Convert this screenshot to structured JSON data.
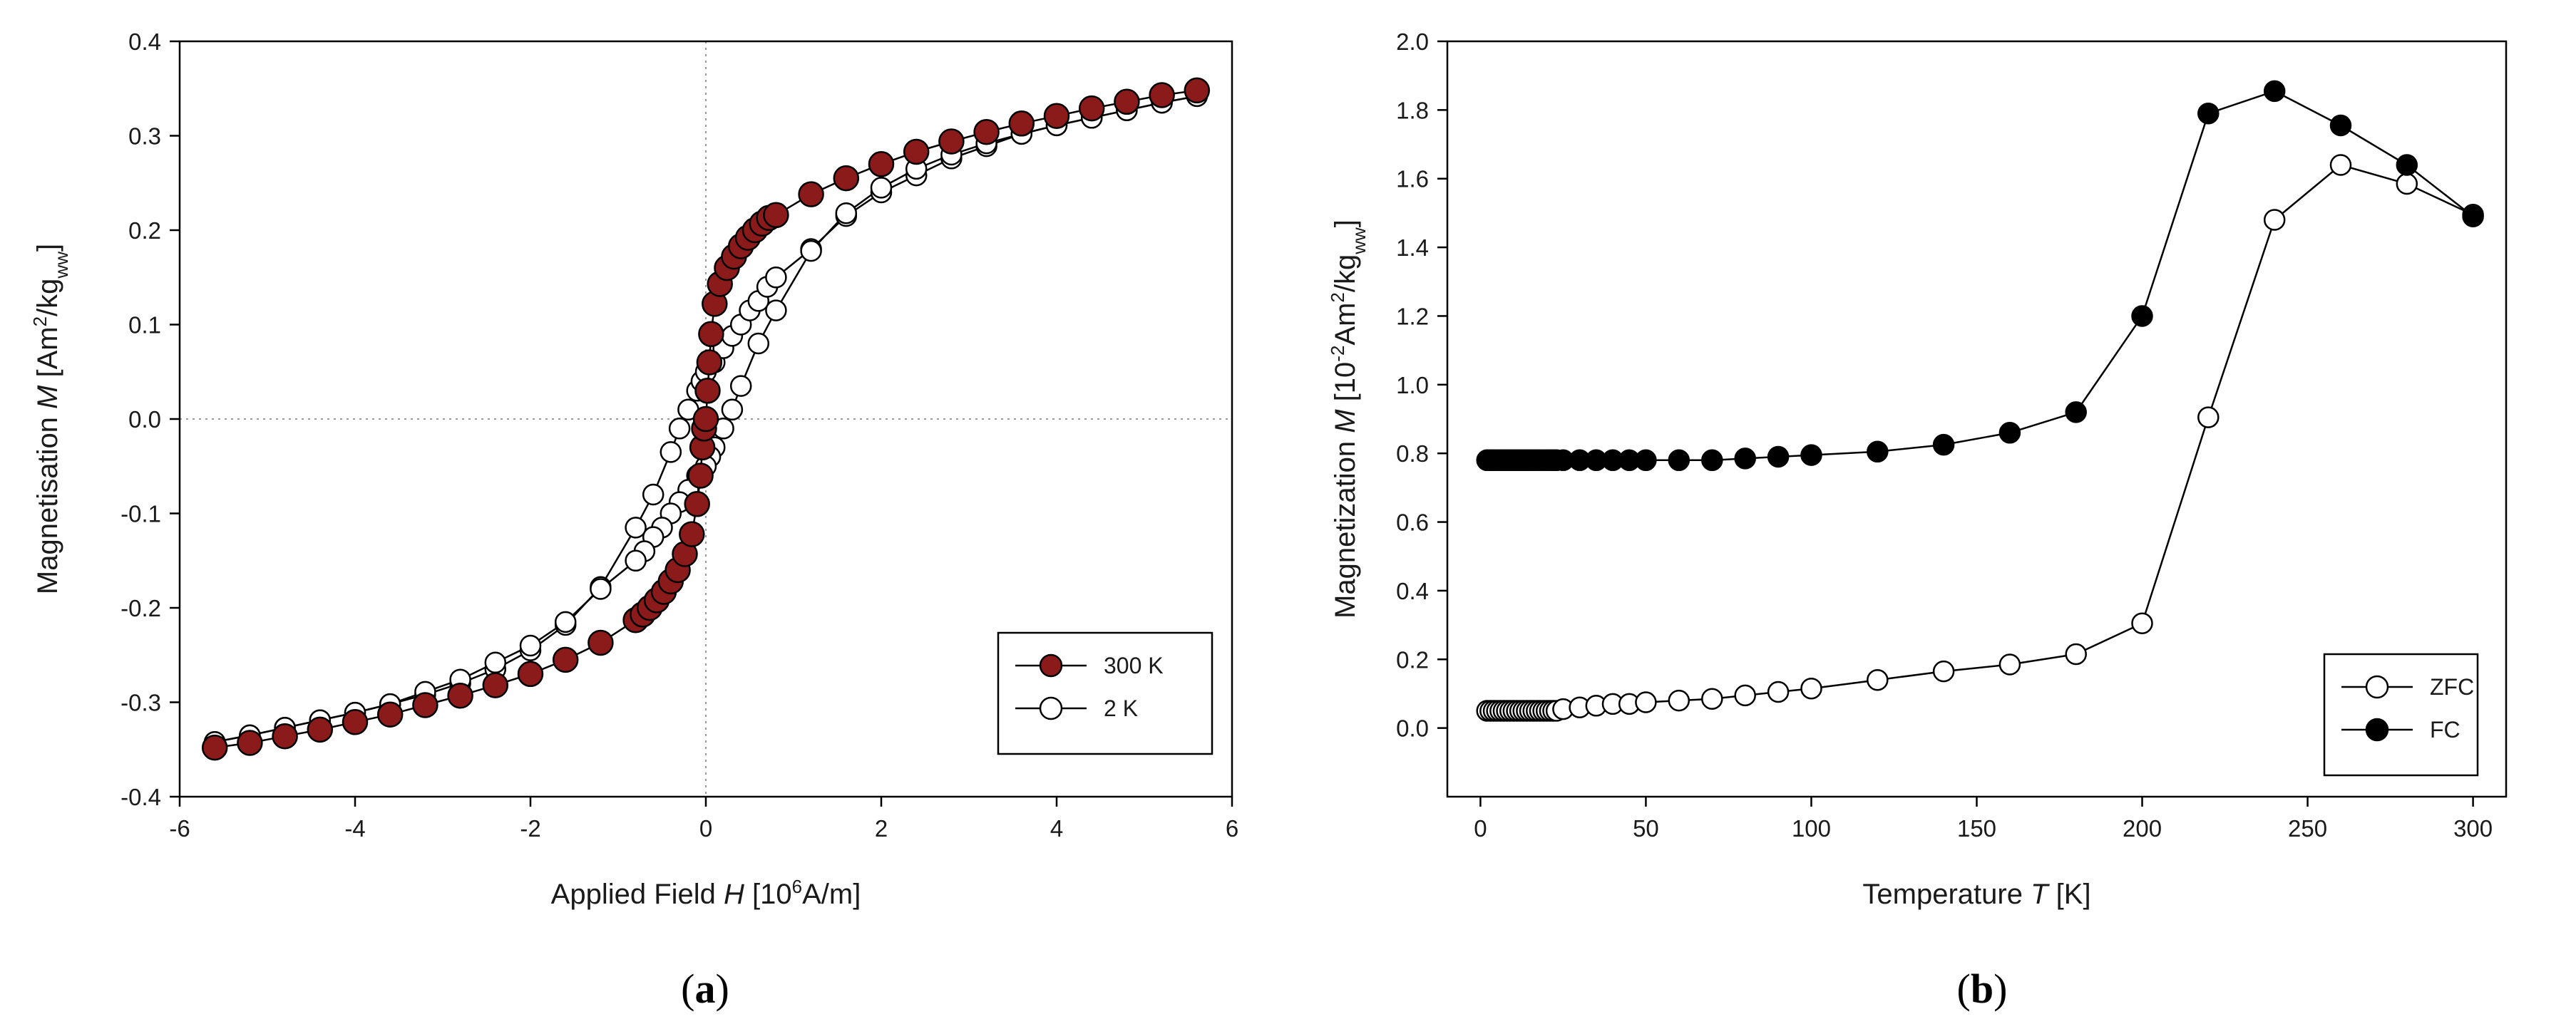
{
  "figure": {
    "panel_a_label": "a",
    "panel_b_label": "b"
  },
  "colors": {
    "fill_300K": "#8b1a1a",
    "fill_2K": "#ffffff",
    "fill_FC": "#000000",
    "fill_ZFC": "#ffffff",
    "stroke": "#000000",
    "reference_line": "#999999"
  },
  "chart_data": [
    {
      "id": "a",
      "type": "scatter",
      "xlabel_parts": [
        "Applied Field ",
        "H",
        " [10",
        "6",
        "A/m]"
      ],
      "ylabel_parts": [
        "Magnetisation ",
        "M",
        " [Am",
        "2",
        "/kg",
        "ww",
        "]"
      ],
      "xlim": [
        -6,
        6
      ],
      "ylim": [
        -0.4,
        0.4
      ],
      "xticks": [
        -6,
        -4,
        -2,
        0,
        2,
        4,
        6
      ],
      "xtick_labels": [
        "-6",
        "-4",
        "-2",
        "0",
        "2",
        "4",
        "6"
      ],
      "yticks": [
        -0.4,
        -0.3,
        -0.2,
        -0.1,
        0.0,
        0.1,
        0.2,
        0.3,
        0.4
      ],
      "ytick_labels": [
        "-0.4",
        "-0.3",
        "-0.2",
        "-0.1",
        "0.0",
        "0.1",
        "0.2",
        "0.3",
        "0.4"
      ],
      "reference_lines": {
        "x": 0,
        "y": 0
      },
      "legend": {
        "position": "bottom-right",
        "entries": [
          "300 K",
          "2 K"
        ]
      },
      "series": [
        {
          "name": "300 K",
          "marker": "filled",
          "color_key": "fill_300K",
          "x": [
            -5.6,
            -5.2,
            -4.8,
            -4.4,
            -4.0,
            -3.6,
            -3.2,
            -2.8,
            -2.4,
            -2.0,
            -1.6,
            -1.2,
            -0.8,
            -0.72,
            -0.64,
            -0.56,
            -0.48,
            -0.4,
            -0.32,
            -0.24,
            -0.16,
            -0.1,
            -0.06,
            -0.04,
            -0.02,
            0.0,
            0.02,
            0.04,
            0.06,
            0.1,
            0.16,
            0.24,
            0.32,
            0.4,
            0.48,
            0.56,
            0.64,
            0.72,
            0.8,
            1.2,
            1.6,
            2.0,
            2.4,
            2.8,
            3.2,
            3.6,
            4.0,
            4.4,
            4.8,
            5.2,
            5.6
          ],
          "y": [
            -0.348,
            -0.343,
            -0.336,
            -0.329,
            -0.321,
            -0.313,
            -0.303,
            -0.293,
            -0.282,
            -0.27,
            -0.255,
            -0.237,
            -0.213,
            -0.207,
            -0.2,
            -0.192,
            -0.183,
            -0.172,
            -0.16,
            -0.143,
            -0.122,
            -0.09,
            -0.06,
            -0.03,
            -0.01,
            0.0,
            0.03,
            0.06,
            0.09,
            0.122,
            0.143,
            0.16,
            0.172,
            0.183,
            0.192,
            0.2,
            0.207,
            0.213,
            0.216,
            0.238,
            0.255,
            0.27,
            0.283,
            0.294,
            0.304,
            0.313,
            0.321,
            0.329,
            0.336,
            0.343,
            0.348
          ]
        },
        {
          "name": "2 K",
          "marker": "open",
          "color_key": "fill_2K",
          "x": [
            -5.6,
            -5.2,
            -4.8,
            -4.4,
            -4.0,
            -3.6,
            -3.2,
            -2.8,
            -2.4,
            -2.0,
            -1.6,
            -1.2,
            -0.8,
            -0.6,
            -0.4,
            -0.3,
            -0.2,
            -0.1,
            -0.05,
            0.0,
            0.1,
            0.2,
            0.3,
            0.4,
            0.5,
            0.6,
            0.7,
            0.8,
            1.2,
            1.6,
            2.0,
            2.4,
            2.8,
            3.2,
            3.6,
            4.0,
            4.4,
            4.8,
            5.2,
            5.6,
            5.6,
            5.2,
            4.8,
            4.4,
            4.0,
            3.6,
            3.2,
            2.8,
            2.4,
            2.0,
            1.6,
            1.2,
            0.8,
            0.6,
            0.4,
            0.3,
            0.2,
            0.1,
            0.05,
            0.0,
            -0.1,
            -0.2,
            -0.3,
            -0.4,
            -0.5,
            -0.6,
            -0.7,
            -0.8,
            -1.2,
            -1.6,
            -2.0,
            -2.4,
            -2.8,
            -3.2,
            -3.6,
            -4.0,
            -4.4,
            -4.8,
            -5.2,
            -5.6
          ],
          "y": [
            -0.342,
            -0.335,
            -0.327,
            -0.319,
            -0.311,
            -0.302,
            -0.292,
            -0.28,
            -0.265,
            -0.245,
            -0.218,
            -0.178,
            -0.115,
            -0.08,
            -0.035,
            -0.01,
            0.01,
            0.03,
            0.04,
            0.05,
            0.06,
            0.075,
            0.088,
            0.1,
            0.115,
            0.125,
            0.14,
            0.15,
            0.18,
            0.215,
            0.24,
            0.258,
            0.276,
            0.289,
            0.302,
            0.311,
            0.319,
            0.327,
            0.335,
            0.342,
            0.342,
            0.335,
            0.327,
            0.319,
            0.311,
            0.302,
            0.292,
            0.28,
            0.265,
            0.245,
            0.218,
            0.178,
            0.115,
            0.08,
            0.035,
            0.01,
            -0.01,
            -0.03,
            -0.04,
            -0.05,
            -0.06,
            -0.075,
            -0.088,
            -0.1,
            -0.115,
            -0.125,
            -0.14,
            -0.15,
            -0.18,
            -0.215,
            -0.24,
            -0.258,
            -0.276,
            -0.289,
            -0.302,
            -0.311,
            -0.319,
            -0.327,
            -0.335,
            -0.342
          ]
        }
      ]
    },
    {
      "id": "b",
      "type": "scatter",
      "xlabel_parts": [
        "Temperature ",
        "T",
        " [K]"
      ],
      "ylabel_parts": [
        "Magnetization ",
        "M",
        " [10",
        "-2",
        "Am",
        "2",
        "/kg",
        "ww",
        "]"
      ],
      "xlim": [
        -10,
        310
      ],
      "ylim": [
        -0.2,
        2.0
      ],
      "xticks": [
        0,
        50,
        100,
        150,
        200,
        250,
        300
      ],
      "xtick_labels": [
        "0",
        "50",
        "100",
        "150",
        "200",
        "250",
        "300"
      ],
      "yticks": [
        0.0,
        0.2,
        0.4,
        0.6,
        0.8,
        1.0,
        1.2,
        1.4,
        1.6,
        1.8,
        2.0
      ],
      "ytick_labels": [
        "0.0",
        "0.2",
        "0.4",
        "0.6",
        "0.8",
        "1.0",
        "1.2",
        "1.4",
        "1.6",
        "1.8",
        "2.0"
      ],
      "legend": {
        "position": "bottom-right",
        "entries": [
          "ZFC",
          "FC"
        ]
      },
      "series": [
        {
          "name": "ZFC",
          "marker": "open",
          "color_key": "fill_ZFC",
          "x": [
            2,
            3,
            4,
            5,
            6,
            7,
            8,
            9,
            10,
            11,
            12,
            13,
            14,
            15,
            16,
            17,
            18,
            19,
            20,
            21,
            22,
            23,
            25,
            30,
            35,
            40,
            45,
            50,
            60,
            70,
            80,
            90,
            100,
            120,
            140,
            160,
            180,
            200,
            220,
            240,
            260,
            280,
            300
          ],
          "y": [
            0.05,
            0.05,
            0.05,
            0.05,
            0.05,
            0.05,
            0.05,
            0.05,
            0.05,
            0.05,
            0.05,
            0.05,
            0.05,
            0.05,
            0.05,
            0.05,
            0.05,
            0.05,
            0.05,
            0.05,
            0.05,
            0.05,
            0.055,
            0.06,
            0.065,
            0.07,
            0.07,
            0.075,
            0.08,
            0.085,
            0.095,
            0.105,
            0.115,
            0.14,
            0.165,
            0.185,
            0.215,
            0.305,
            0.905,
            1.48,
            1.64,
            1.585,
            1.495
          ]
        },
        {
          "name": "FC",
          "marker": "filled",
          "color_key": "fill_FC",
          "x": [
            2,
            3,
            4,
            5,
            6,
            7,
            8,
            9,
            10,
            11,
            12,
            13,
            14,
            15,
            16,
            17,
            18,
            19,
            20,
            21,
            22,
            23,
            25,
            30,
            35,
            40,
            45,
            50,
            60,
            70,
            80,
            90,
            100,
            120,
            140,
            160,
            180,
            200,
            220,
            240,
            260,
            280,
            300
          ],
          "y": [
            0.78,
            0.78,
            0.78,
            0.78,
            0.78,
            0.78,
            0.78,
            0.78,
            0.78,
            0.78,
            0.78,
            0.78,
            0.78,
            0.78,
            0.78,
            0.78,
            0.78,
            0.78,
            0.78,
            0.78,
            0.78,
            0.78,
            0.78,
            0.78,
            0.78,
            0.78,
            0.78,
            0.78,
            0.78,
            0.78,
            0.785,
            0.79,
            0.795,
            0.805,
            0.825,
            0.86,
            0.92,
            1.2,
            1.79,
            1.855,
            1.755,
            1.64,
            1.49
          ]
        }
      ]
    }
  ]
}
